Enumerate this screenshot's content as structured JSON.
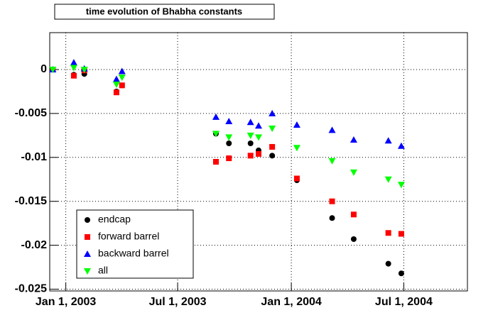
{
  "chart_data": {
    "type": "scatter",
    "title": "time evolution of Bhabha constants",
    "x": [
      -21,
      13,
      30,
      82,
      91,
      243,
      264,
      299,
      312,
      334,
      374,
      431,
      466,
      522,
      543
    ],
    "series": [
      {
        "name": "endcap",
        "color": "#000000",
        "marker": "circle",
        "values": [
          0,
          -0.0006,
          -0.0005,
          -0.0025,
          -0.0018,
          -0.0073,
          -0.0084,
          -0.0084,
          -0.0092,
          -0.0098,
          -0.0126,
          -0.0169,
          -0.0193,
          -0.0221,
          -0.0232
        ]
      },
      {
        "name": "forward barrel",
        "color": "#ff0000",
        "marker": "square",
        "values": [
          0,
          -0.0007,
          -0.0001,
          -0.0026,
          -0.0018,
          -0.0105,
          -0.0101,
          -0.0098,
          -0.0096,
          -0.0088,
          -0.0124,
          -0.015,
          -0.0165,
          -0.0186,
          -0.0187
        ]
      },
      {
        "name": "backward barrel",
        "color": "#0000ff",
        "marker": "triangle-up",
        "values": [
          0,
          0.0008,
          0.0001,
          -0.0011,
          -0.0002,
          -0.0054,
          -0.0059,
          -0.006,
          -0.0064,
          -0.005,
          -0.0063,
          -0.0069,
          -0.008,
          -0.0081,
          -0.0087
        ]
      },
      {
        "name": "all",
        "color": "#00ff00",
        "marker": "triangle-down",
        "values": [
          0,
          0.0002,
          0,
          -0.0017,
          -0.0009,
          -0.0073,
          -0.0077,
          -0.0075,
          -0.0077,
          -0.0067,
          -0.0089,
          -0.0104,
          -0.0117,
          -0.0125,
          -0.0131
        ]
      }
    ],
    "xlim": [
      -26,
      650
    ],
    "xticks": [
      {
        "value": 0,
        "label": "Jan 1, 2003"
      },
      {
        "value": 181,
        "label": "Jul 1, 2003"
      },
      {
        "value": 365,
        "label": "Jan 1, 2004"
      },
      {
        "value": 547,
        "label": "Jul 1, 2004"
      }
    ],
    "ylim": [
      -0.0252,
      0.0042
    ],
    "yticks": [
      0,
      -0.005,
      -0.01,
      -0.015,
      -0.02,
      -0.025
    ],
    "grid": true,
    "legend": "lower-left"
  }
}
